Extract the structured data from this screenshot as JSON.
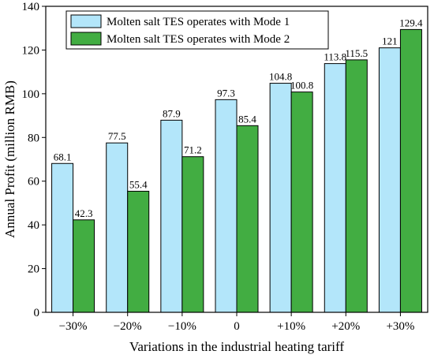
{
  "chart_data": {
    "type": "bar",
    "title": "",
    "xlabel": "Variations in the industrial heating tariff",
    "ylabel": "Annual Profit (million RMB)",
    "categories": [
      "−30%",
      "−20%",
      "−10%",
      "0",
      "+10%",
      "+20%",
      "+30%"
    ],
    "ylim": [
      0,
      140
    ],
    "yticks": [
      0,
      20,
      40,
      60,
      80,
      100,
      120,
      140
    ],
    "legend_position": "top-left",
    "grid": false,
    "series": [
      {
        "name": "Molten salt TES operates with Mode 1",
        "color": "#b3e6fa",
        "values": [
          68.1,
          77.5,
          87.9,
          97.3,
          104.8,
          113.8,
          121
        ],
        "labels": [
          "68.1",
          "77.5",
          "87.9",
          "97.3",
          "104.8",
          "113.8",
          "121"
        ]
      },
      {
        "name": "Molten salt TES operates with Mode 2",
        "color": "#42ad42",
        "values": [
          42.3,
          55.4,
          71.2,
          85.4,
          100.8,
          115.5,
          129.4
        ],
        "labels": [
          "42.3",
          "55.4",
          "71.2",
          "85.4",
          "100.8",
          "115.5",
          "129.4"
        ]
      }
    ]
  }
}
